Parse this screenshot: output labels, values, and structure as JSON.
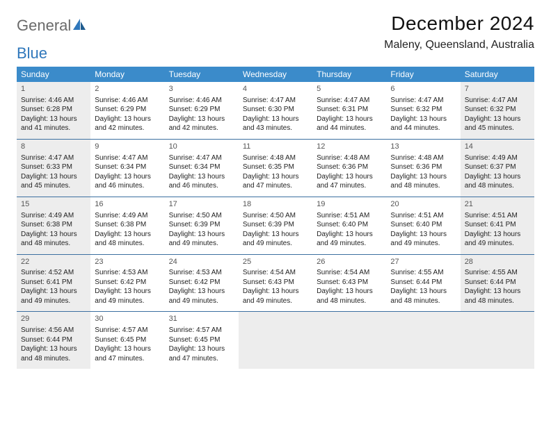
{
  "logo": {
    "text1": "General",
    "text2": "Blue"
  },
  "title": "December 2024",
  "location": "Maleny, Queensland, Australia",
  "colors": {
    "header_bg": "#3b8bca",
    "header_fg": "#ffffff",
    "row_border": "#3b6fa0",
    "shaded_bg": "#ededed",
    "logo_gray": "#6a6a6a",
    "logo_blue": "#2f77bb"
  },
  "day_headers": [
    "Sunday",
    "Monday",
    "Tuesday",
    "Wednesday",
    "Thursday",
    "Friday",
    "Saturday"
  ],
  "weeks": [
    [
      {
        "n": "1",
        "shaded": true,
        "sr": "4:46 AM",
        "ss": "6:28 PM",
        "dl": "13 hours and 41 minutes."
      },
      {
        "n": "2",
        "shaded": false,
        "sr": "4:46 AM",
        "ss": "6:29 PM",
        "dl": "13 hours and 42 minutes."
      },
      {
        "n": "3",
        "shaded": false,
        "sr": "4:46 AM",
        "ss": "6:29 PM",
        "dl": "13 hours and 42 minutes."
      },
      {
        "n": "4",
        "shaded": false,
        "sr": "4:47 AM",
        "ss": "6:30 PM",
        "dl": "13 hours and 43 minutes."
      },
      {
        "n": "5",
        "shaded": false,
        "sr": "4:47 AM",
        "ss": "6:31 PM",
        "dl": "13 hours and 44 minutes."
      },
      {
        "n": "6",
        "shaded": false,
        "sr": "4:47 AM",
        "ss": "6:32 PM",
        "dl": "13 hours and 44 minutes."
      },
      {
        "n": "7",
        "shaded": true,
        "sr": "4:47 AM",
        "ss": "6:32 PM",
        "dl": "13 hours and 45 minutes."
      }
    ],
    [
      {
        "n": "8",
        "shaded": true,
        "sr": "4:47 AM",
        "ss": "6:33 PM",
        "dl": "13 hours and 45 minutes."
      },
      {
        "n": "9",
        "shaded": false,
        "sr": "4:47 AM",
        "ss": "6:34 PM",
        "dl": "13 hours and 46 minutes."
      },
      {
        "n": "10",
        "shaded": false,
        "sr": "4:47 AM",
        "ss": "6:34 PM",
        "dl": "13 hours and 46 minutes."
      },
      {
        "n": "11",
        "shaded": false,
        "sr": "4:48 AM",
        "ss": "6:35 PM",
        "dl": "13 hours and 47 minutes."
      },
      {
        "n": "12",
        "shaded": false,
        "sr": "4:48 AM",
        "ss": "6:36 PM",
        "dl": "13 hours and 47 minutes."
      },
      {
        "n": "13",
        "shaded": false,
        "sr": "4:48 AM",
        "ss": "6:36 PM",
        "dl": "13 hours and 48 minutes."
      },
      {
        "n": "14",
        "shaded": true,
        "sr": "4:49 AM",
        "ss": "6:37 PM",
        "dl": "13 hours and 48 minutes."
      }
    ],
    [
      {
        "n": "15",
        "shaded": true,
        "sr": "4:49 AM",
        "ss": "6:38 PM",
        "dl": "13 hours and 48 minutes."
      },
      {
        "n": "16",
        "shaded": false,
        "sr": "4:49 AM",
        "ss": "6:38 PM",
        "dl": "13 hours and 48 minutes."
      },
      {
        "n": "17",
        "shaded": false,
        "sr": "4:50 AM",
        "ss": "6:39 PM",
        "dl": "13 hours and 49 minutes."
      },
      {
        "n": "18",
        "shaded": false,
        "sr": "4:50 AM",
        "ss": "6:39 PM",
        "dl": "13 hours and 49 minutes."
      },
      {
        "n": "19",
        "shaded": false,
        "sr": "4:51 AM",
        "ss": "6:40 PM",
        "dl": "13 hours and 49 minutes."
      },
      {
        "n": "20",
        "shaded": false,
        "sr": "4:51 AM",
        "ss": "6:40 PM",
        "dl": "13 hours and 49 minutes."
      },
      {
        "n": "21",
        "shaded": true,
        "sr": "4:51 AM",
        "ss": "6:41 PM",
        "dl": "13 hours and 49 minutes."
      }
    ],
    [
      {
        "n": "22",
        "shaded": true,
        "sr": "4:52 AM",
        "ss": "6:41 PM",
        "dl": "13 hours and 49 minutes."
      },
      {
        "n": "23",
        "shaded": false,
        "sr": "4:53 AM",
        "ss": "6:42 PM",
        "dl": "13 hours and 49 minutes."
      },
      {
        "n": "24",
        "shaded": false,
        "sr": "4:53 AM",
        "ss": "6:42 PM",
        "dl": "13 hours and 49 minutes."
      },
      {
        "n": "25",
        "shaded": false,
        "sr": "4:54 AM",
        "ss": "6:43 PM",
        "dl": "13 hours and 49 minutes."
      },
      {
        "n": "26",
        "shaded": false,
        "sr": "4:54 AM",
        "ss": "6:43 PM",
        "dl": "13 hours and 48 minutes."
      },
      {
        "n": "27",
        "shaded": false,
        "sr": "4:55 AM",
        "ss": "6:44 PM",
        "dl": "13 hours and 48 minutes."
      },
      {
        "n": "28",
        "shaded": true,
        "sr": "4:55 AM",
        "ss": "6:44 PM",
        "dl": "13 hours and 48 minutes."
      }
    ],
    [
      {
        "n": "29",
        "shaded": true,
        "sr": "4:56 AM",
        "ss": "6:44 PM",
        "dl": "13 hours and 48 minutes."
      },
      {
        "n": "30",
        "shaded": false,
        "sr": "4:57 AM",
        "ss": "6:45 PM",
        "dl": "13 hours and 47 minutes."
      },
      {
        "n": "31",
        "shaded": false,
        "sr": "4:57 AM",
        "ss": "6:45 PM",
        "dl": "13 hours and 47 minutes."
      },
      {
        "n": "",
        "shaded": true,
        "sr": "",
        "ss": "",
        "dl": ""
      },
      {
        "n": "",
        "shaded": true,
        "sr": "",
        "ss": "",
        "dl": ""
      },
      {
        "n": "",
        "shaded": true,
        "sr": "",
        "ss": "",
        "dl": ""
      },
      {
        "n": "",
        "shaded": true,
        "sr": "",
        "ss": "",
        "dl": ""
      }
    ]
  ],
  "labels": {
    "sunrise": "Sunrise: ",
    "sunset": "Sunset: ",
    "daylight": "Daylight: "
  }
}
